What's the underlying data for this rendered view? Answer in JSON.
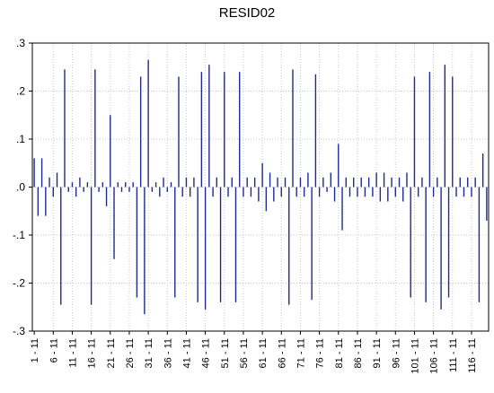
{
  "chart_data": {
    "type": "bar",
    "title": "RESID02",
    "xlabel": "",
    "ylabel": "",
    "ylim": [
      -0.3,
      0.3
    ],
    "yticks": [
      0.3,
      0.2,
      0.1,
      0.0,
      -0.1,
      -0.2,
      -0.3
    ],
    "ytick_labels": [
      ".3",
      ".2",
      ".1",
      ".0",
      "-.1",
      "-.2",
      "-.3"
    ],
    "xtick_labels": [
      "1 - 11",
      "6 - 11",
      "11 - 11",
      "16 - 11",
      "21 - 11",
      "26 - 11",
      "31 - 11",
      "36 - 11",
      "41 - 11",
      "46 - 11",
      "51 - 11",
      "56 - 11",
      "61 - 11",
      "66 - 11",
      "71 - 11",
      "76 - 11",
      "81 - 11",
      "86 - 11",
      "91 - 11",
      "96 - 11",
      "101 - 11",
      "106 - 11",
      "111 - 11",
      "116 - 11"
    ],
    "grid": true,
    "line_color": "#1f2a8c",
    "n": 120,
    "values": [
      0.06,
      -0.06,
      0.06,
      -0.06,
      0.02,
      -0.02,
      0.03,
      -0.245,
      0.245,
      -0.01,
      0.01,
      -0.02,
      0.02,
      -0.01,
      0.01,
      -0.245,
      0.245,
      -0.01,
      0.01,
      -0.04,
      0.15,
      -0.15,
      0.01,
      -0.01,
      0.01,
      -0.01,
      0.01,
      -0.23,
      0.23,
      -0.265,
      0.265,
      -0.01,
      0.01,
      -0.02,
      0.02,
      -0.01,
      0.01,
      -0.23,
      0.23,
      -0.02,
      0.02,
      -0.02,
      0.02,
      -0.24,
      0.24,
      -0.255,
      0.255,
      -0.02,
      0.02,
      -0.24,
      0.24,
      -0.02,
      0.02,
      -0.24,
      0.24,
      -0.02,
      0.02,
      -0.02,
      0.02,
      -0.03,
      0.05,
      -0.05,
      0.03,
      -0.03,
      0.02,
      -0.02,
      0.02,
      -0.245,
      0.245,
      -0.02,
      0.02,
      -0.02,
      0.03,
      -0.235,
      0.235,
      -0.02,
      0.02,
      -0.01,
      0.03,
      -0.03,
      0.09,
      -0.09,
      0.02,
      -0.02,
      0.02,
      -0.02,
      0.02,
      -0.02,
      0.02,
      -0.02,
      0.03,
      -0.03,
      0.03,
      -0.03,
      0.02,
      -0.02,
      0.02,
      -0.03,
      0.03,
      -0.23,
      0.23,
      -0.02,
      0.02,
      -0.24,
      0.24,
      -0.02,
      0.02,
      -0.255,
      0.255,
      -0.23,
      0.23,
      -0.02,
      0.02,
      -0.02,
      0.02,
      -0.02,
      0.02,
      -0.24,
      0.07,
      -0.07
    ]
  }
}
